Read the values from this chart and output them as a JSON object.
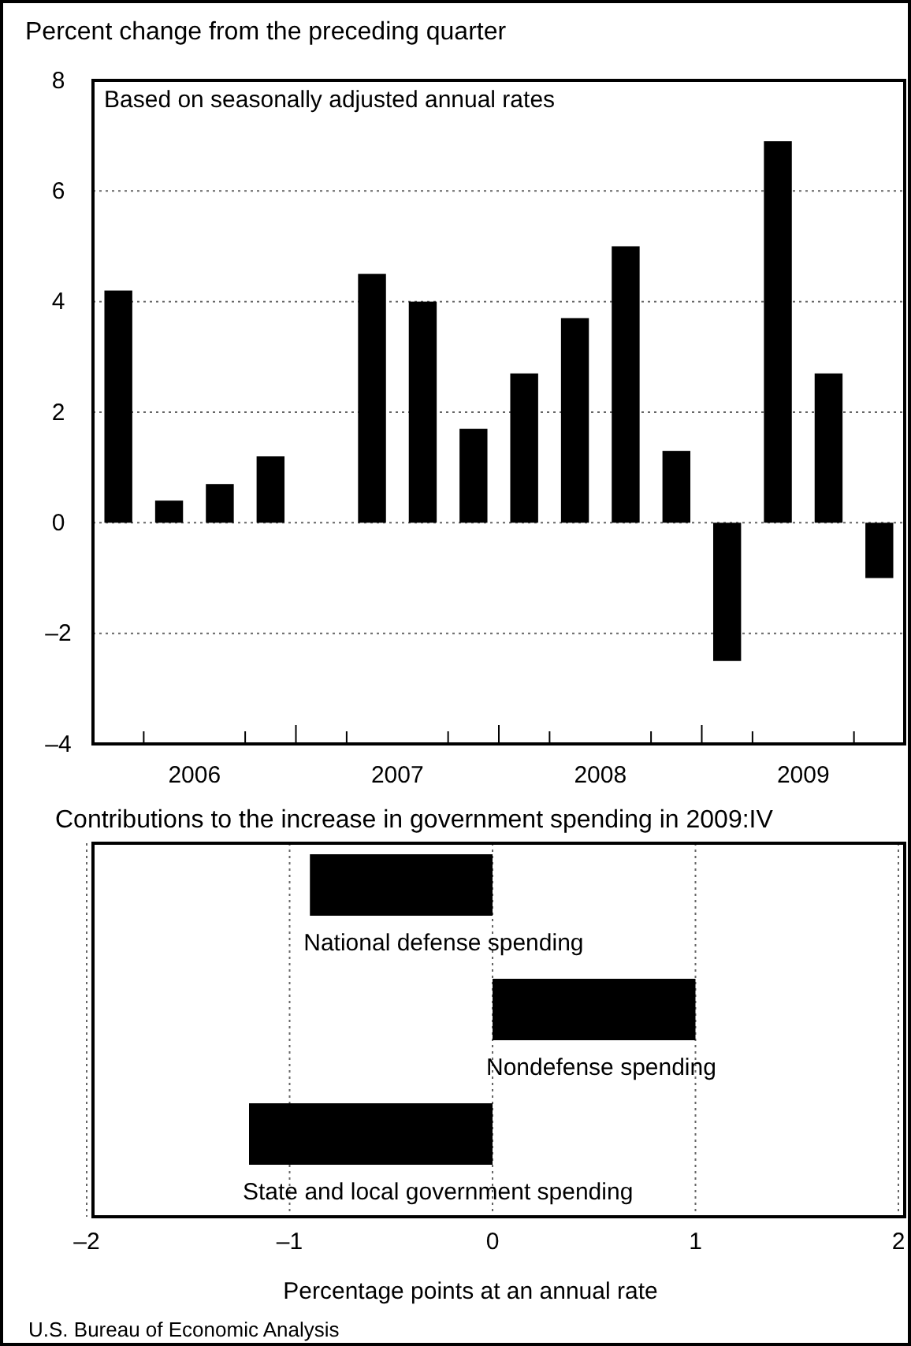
{
  "chart_data": [
    {
      "type": "bar",
      "ylabel": "Percent change from the preceding quarter",
      "subtitle": "Based on seasonally adjusted annual rates",
      "x": [
        2006.125,
        2006.375,
        2006.625,
        2006.875,
        2007.125,
        2007.375,
        2007.625,
        2007.875,
        2008.125,
        2008.375,
        2008.625,
        2008.875,
        2009.125,
        2009.375,
        2009.625,
        2009.875
      ],
      "values": [
        4.2,
        0.4,
        0.7,
        1.2,
        null,
        4.5,
        4.0,
        1.7,
        2.7,
        3.7,
        5.0,
        1.3,
        -2.5,
        6.9,
        2.7,
        -1.0
      ],
      "color": "#000000",
      "xlim": [
        2006,
        2010
      ],
      "xticks": [
        {
          "value": 2006.25,
          "label": null
        },
        {
          "value": 2006.5,
          "label": "2006"
        },
        {
          "value": 2006.75,
          "label": null
        },
        {
          "value": 2007,
          "label": null
        },
        {
          "value": 2007.25,
          "label": null
        },
        {
          "value": 2007.5,
          "label": "2007"
        },
        {
          "value": 2007.75,
          "label": null
        },
        {
          "value": 2008,
          "label": null
        },
        {
          "value": 2008.25,
          "label": null
        },
        {
          "value": 2008.5,
          "label": "2008"
        },
        {
          "value": 2008.75,
          "label": null
        },
        {
          "value": 2009,
          "label": null
        },
        {
          "value": 2009.25,
          "label": null
        },
        {
          "value": 2009.5,
          "label": "2009"
        },
        {
          "value": 2009.75,
          "label": null
        }
      ],
      "ylim": [
        -4,
        8
      ],
      "yticks": [
        {
          "value": -4,
          "label": "–4"
        },
        {
          "value": -2,
          "label": "–2"
        },
        0,
        2,
        4,
        6,
        8
      ],
      "grid": "y"
    },
    {
      "type": "bar",
      "orientation": "horizontal",
      "title": "Contributions to the increase in government spending in 2009:IV",
      "xlabel": "Percentage points at an annual rate",
      "categories": [
        "National defense spending",
        "Nondefense spending",
        "State and local government spending"
      ],
      "values": [
        -0.9,
        1.0,
        -1.2
      ],
      "color": "#000000",
      "xlim": [
        -2,
        2
      ],
      "xticks": [
        {
          "value": -2,
          "label": "–2"
        },
        {
          "value": -1,
          "label": "–1"
        },
        0,
        1,
        2
      ],
      "grid": "x",
      "annotations": [
        "U.S. Bureau of Economic Analysis"
      ]
    }
  ]
}
